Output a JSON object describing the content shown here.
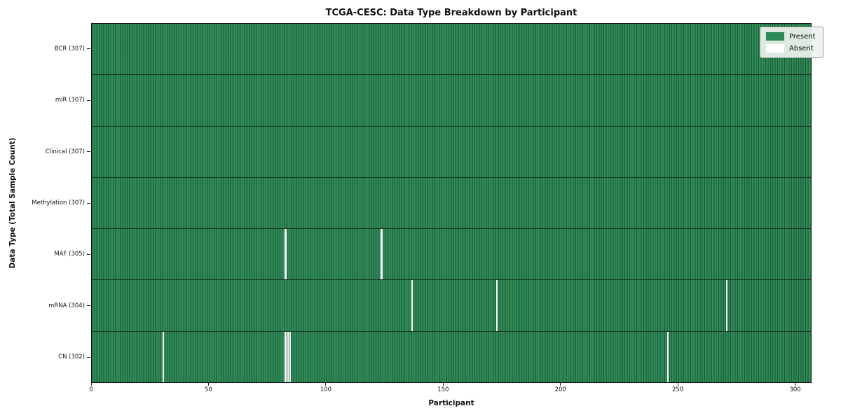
{
  "chart_data": {
    "type": "heatmap",
    "title": "TCGA-CESC: Data Type Breakdown by Participant",
    "xlabel": "Participant",
    "ylabel": "Data Type (Total Sample Count)",
    "x_ticks": [
      0,
      50,
      100,
      150,
      200,
      250,
      300
    ],
    "x_range": [
      0,
      307
    ],
    "n_participants": 307,
    "grid": false,
    "rows": [
      {
        "name": "bcr",
        "label": "BCR (307)",
        "data_type": "BCR",
        "present_count": 307,
        "absent_participants": []
      },
      {
        "name": "mir",
        "label": "miR (307)",
        "data_type": "miR",
        "present_count": 307,
        "absent_participants": []
      },
      {
        "name": "clinical",
        "label": "Clinical (307)",
        "data_type": "Clinical",
        "present_count": 307,
        "absent_participants": []
      },
      {
        "name": "methylation",
        "label": "Methylation (307)",
        "data_type": "Methylation",
        "present_count": 307,
        "absent_participants": []
      },
      {
        "name": "maf",
        "label": "MAF (305)",
        "data_type": "MAF",
        "present_count": 305,
        "absent_participants": [
          82,
          123
        ]
      },
      {
        "name": "mrna",
        "label": "mRNA (304)",
        "data_type": "mRNA",
        "present_count": 304,
        "absent_participants": [
          136,
          172,
          270
        ]
      },
      {
        "name": "cn",
        "label": "CN (302)",
        "data_type": "CN",
        "present_count": 302,
        "absent_participants": [
          30,
          82,
          83,
          84,
          245
        ]
      }
    ],
    "colors": {
      "present": "#2e8b57",
      "absent": "#ffffff",
      "cell_edge": "rgba(0,0,0,0.38)"
    },
    "legend": {
      "position": "upper right",
      "entries": [
        {
          "label": "Present",
          "color": "#2e8b57"
        },
        {
          "label": "Absent",
          "color": "#ffffff"
        }
      ]
    }
  }
}
